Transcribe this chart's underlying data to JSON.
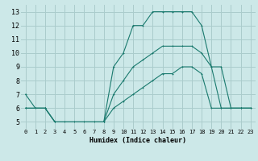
{
  "xlabel": "Humidex (Indice chaleur)",
  "xlim": [
    -0.5,
    23.5
  ],
  "ylim": [
    4.5,
    13.5
  ],
  "yticks": [
    5,
    6,
    7,
    8,
    9,
    10,
    11,
    12,
    13
  ],
  "xticks": [
    0,
    1,
    2,
    3,
    4,
    5,
    6,
    7,
    8,
    9,
    10,
    11,
    12,
    13,
    14,
    15,
    16,
    17,
    18,
    19,
    20,
    21,
    22,
    23
  ],
  "bg_color": "#cce8e8",
  "line_color": "#1a7a6e",
  "grid_color": "#aacccc",
  "line1_x": [
    0,
    1,
    2,
    3,
    4,
    5,
    6,
    7,
    8,
    9,
    10,
    11,
    12,
    13,
    14,
    15,
    16,
    17,
    18,
    19,
    20,
    21,
    22,
    23
  ],
  "line1_y": [
    7,
    6,
    6,
    5,
    5,
    5,
    5,
    5,
    5,
    9,
    10,
    12,
    12,
    13,
    13,
    13,
    13,
    13,
    12,
    9,
    9,
    6,
    6,
    6
  ],
  "line2_x": [
    0,
    2,
    3,
    8,
    9,
    10,
    11,
    12,
    13,
    14,
    15,
    16,
    17,
    18,
    19,
    20,
    21,
    22,
    23
  ],
  "line2_y": [
    6,
    6,
    5,
    5,
    7,
    8,
    9,
    9.5,
    10,
    10.5,
    10.5,
    10.5,
    10.5,
    10,
    9,
    6,
    6,
    6,
    6
  ],
  "line3_x": [
    0,
    2,
    3,
    8,
    9,
    10,
    11,
    12,
    13,
    14,
    15,
    16,
    17,
    18,
    19,
    20,
    21,
    22,
    23
  ],
  "line3_y": [
    6,
    6,
    5,
    5,
    6,
    6.5,
    7,
    7.5,
    8,
    8.5,
    8.5,
    9,
    9,
    8.5,
    6,
    6,
    6,
    6,
    6
  ]
}
